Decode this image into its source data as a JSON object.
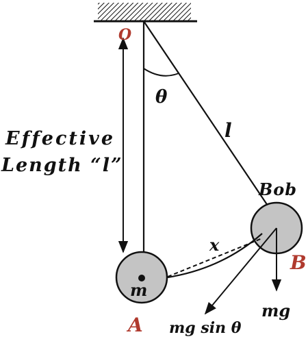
{
  "labels": {
    "pivot": "O",
    "angle": "θ",
    "length": "l",
    "effective_line1": "Effective",
    "effective_line2": "Length “l”",
    "bob": "Bob",
    "mass": "m",
    "point_a": "A",
    "point_b": "B",
    "displacement": "x",
    "weight": "mg",
    "tangential_force": "mg sin θ"
  },
  "colors": {
    "accent": "#b03a2e",
    "bob_fill": "#c4c4c4",
    "ink": "#111111"
  }
}
